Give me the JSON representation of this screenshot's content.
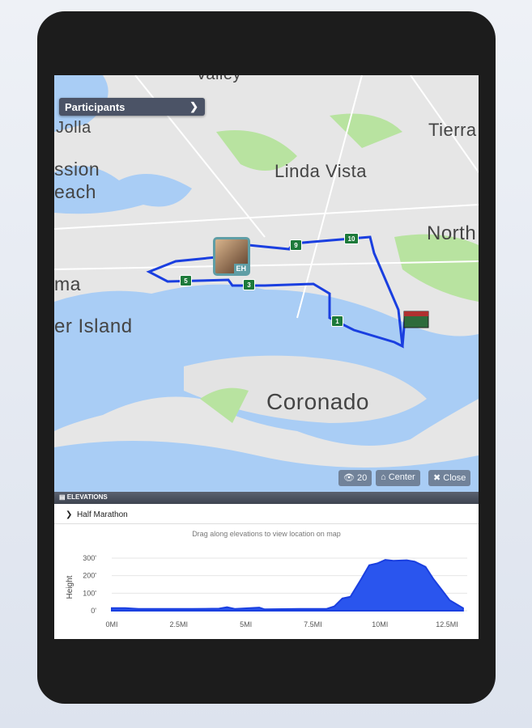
{
  "map": {
    "places": [
      "Valley",
      "Jolla",
      "ssion",
      "each",
      "Linda Vista",
      "Tierra",
      "North",
      "ma",
      "er Island",
      "Coronado"
    ],
    "participants_label": "Participants",
    "mile_markers": [
      "1",
      "3",
      "5",
      "9",
      "10"
    ],
    "participant_initials": "EH",
    "buttons": {
      "view_count": "20",
      "center": "Center",
      "close": "Close"
    },
    "colors": {
      "water": "#a9cdf5",
      "land": "#e6e6e6",
      "park": "#b8e3a0",
      "route": "#1a3fe0",
      "marker": "#1d7a3a"
    }
  },
  "elevations": {
    "header": "ELEVATIONS",
    "race_name": "Half Marathon",
    "hint": "Drag along elevations to view location on map"
  },
  "chart_data": {
    "type": "area",
    "ylabel": "Height",
    "xlabel": "",
    "x_ticks": [
      "0MI",
      "2.5MI",
      "5MI",
      "7.5MI",
      "10MI",
      "12.5MI"
    ],
    "y_ticks": [
      "0'",
      "100'",
      "200'",
      "300'"
    ],
    "xlim": [
      0,
      13.1
    ],
    "ylim": [
      0,
      300
    ],
    "grid": true,
    "color": "#2a55ee",
    "points": [
      [
        0,
        15
      ],
      [
        0.5,
        15
      ],
      [
        1,
        10
      ],
      [
        3,
        10
      ],
      [
        4,
        12
      ],
      [
        4.3,
        20
      ],
      [
        4.6,
        10
      ],
      [
        5.5,
        18
      ],
      [
        5.7,
        8
      ],
      [
        7,
        10
      ],
      [
        8,
        10
      ],
      [
        8.3,
        25
      ],
      [
        8.6,
        70
      ],
      [
        8.9,
        80
      ],
      [
        9.3,
        180
      ],
      [
        9.6,
        260
      ],
      [
        9.9,
        270
      ],
      [
        10.2,
        290
      ],
      [
        10.5,
        285
      ],
      [
        11,
        288
      ],
      [
        11.3,
        280
      ],
      [
        11.7,
        250
      ],
      [
        12,
        180
      ],
      [
        12.3,
        120
      ],
      [
        12.6,
        60
      ],
      [
        13.1,
        15
      ]
    ]
  }
}
